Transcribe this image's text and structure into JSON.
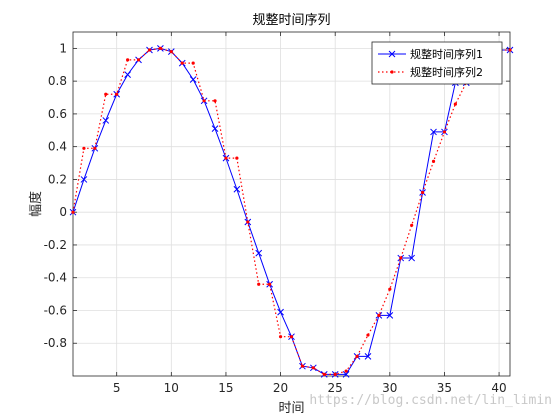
{
  "chart_data": {
    "type": "line",
    "title": "规整时间序列",
    "xlabel": "时间",
    "ylabel": "幅度",
    "xlim": [
      1,
      41
    ],
    "ylim": [
      -1,
      1.1
    ],
    "xticks": [
      5,
      10,
      15,
      20,
      25,
      30,
      35,
      40
    ],
    "yticks": [
      -0.8,
      -0.6,
      -0.4,
      -0.2,
      0,
      0.2,
      0.4,
      0.6,
      0.8,
      1
    ],
    "ytick_labels": [
      "-0.8",
      "-0.6",
      "-0.4",
      "-0.2",
      "0",
      "0.2",
      "0.4",
      "0.6",
      "0.8",
      "1"
    ],
    "grid": true,
    "legend_position": "top-right",
    "series": [
      {
        "name": "规整时间序列1",
        "color": "#0000ff",
        "line_style": "solid",
        "marker": "x",
        "points": [
          [
            1,
            0
          ],
          [
            2,
            0.2
          ],
          [
            3,
            0.39
          ],
          [
            4,
            0.56
          ],
          [
            5,
            0.72
          ],
          [
            6,
            0.84
          ],
          [
            7,
            0.93
          ],
          [
            8,
            0.99
          ],
          [
            9,
            1.0
          ],
          [
            10,
            0.98
          ],
          [
            11,
            0.91
          ],
          [
            12,
            0.81
          ],
          [
            13,
            0.68
          ],
          [
            14,
            0.51
          ],
          [
            15,
            0.33
          ],
          [
            16,
            0.14
          ],
          [
            17,
            -0.06
          ],
          [
            18,
            -0.25
          ],
          [
            19,
            -0.44
          ],
          [
            20,
            -0.61
          ],
          [
            21,
            -0.76
          ],
          [
            22,
            -0.94
          ],
          [
            23,
            -0.95
          ],
          [
            24,
            -0.99
          ],
          [
            25,
            -0.99
          ],
          [
            26,
            -0.99
          ],
          [
            27,
            -0.88
          ],
          [
            28,
            -0.88
          ],
          [
            29,
            -0.63
          ],
          [
            30,
            -0.63
          ],
          [
            31,
            -0.28
          ],
          [
            32,
            -0.28
          ],
          [
            33,
            0.12
          ],
          [
            34,
            0.49
          ],
          [
            35,
            0.49
          ],
          [
            36,
            0.79
          ],
          [
            37,
            0.79
          ],
          [
            38,
            0.86
          ],
          [
            39,
            0.93
          ],
          [
            40,
            0.99
          ],
          [
            41,
            0.99
          ]
        ]
      },
      {
        "name": "规整时间序列2",
        "color": "#ff0000",
        "line_style": "dotted",
        "marker": "dot",
        "points": [
          [
            1,
            0
          ],
          [
            2,
            0.39
          ],
          [
            3,
            0.39
          ],
          [
            4,
            0.72
          ],
          [
            5,
            0.72
          ],
          [
            6,
            0.93
          ],
          [
            7,
            0.93
          ],
          [
            8,
            0.99
          ],
          [
            9,
            1.0
          ],
          [
            10,
            0.98
          ],
          [
            11,
            0.91
          ],
          [
            12,
            0.91
          ],
          [
            13,
            0.68
          ],
          [
            14,
            0.68
          ],
          [
            15,
            0.33
          ],
          [
            16,
            0.33
          ],
          [
            17,
            -0.06
          ],
          [
            18,
            -0.44
          ],
          [
            19,
            -0.44
          ],
          [
            20,
            -0.76
          ],
          [
            21,
            -0.76
          ],
          [
            22,
            -0.94
          ],
          [
            23,
            -0.95
          ],
          [
            24,
            -0.99
          ],
          [
            25,
            -0.99
          ],
          [
            26,
            -0.97
          ],
          [
            27,
            -0.88
          ],
          [
            28,
            -0.75
          ],
          [
            29,
            -0.63
          ],
          [
            30,
            -0.47
          ],
          [
            31,
            -0.28
          ],
          [
            32,
            -0.08
          ],
          [
            33,
            0.12
          ],
          [
            34,
            0.31
          ],
          [
            35,
            0.49
          ],
          [
            36,
            0.66
          ],
          [
            37,
            0.79
          ],
          [
            38,
            0.89
          ],
          [
            39,
            0.96
          ],
          [
            40,
            0.99
          ],
          [
            41,
            0.99
          ]
        ]
      }
    ]
  },
  "watermark": "https://blog.csdn.net/lin_limin"
}
